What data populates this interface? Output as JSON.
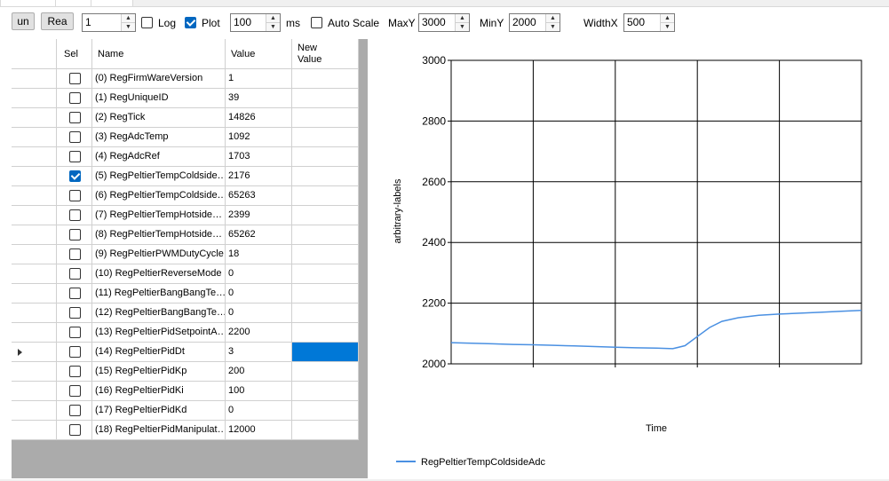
{
  "toolbar": {
    "run_label": "un",
    "read_label": "Rea",
    "interval_value": "1",
    "log_label": "Log",
    "log_checked": false,
    "plot_label": "Plot",
    "plot_checked": true,
    "period_value": "100",
    "period_unit": "ms",
    "autoscale_label": "Auto Scale",
    "autoscale_checked": false,
    "maxy_label": "MaxY",
    "maxy_value": "3000",
    "miny_label": "MinY",
    "miny_value": "2000",
    "widthx_label": "WidthX",
    "widthx_value": "500"
  },
  "table": {
    "headers": {
      "sel": "Sel",
      "name": "Name",
      "value": "Value",
      "new_value_line1": "New",
      "new_value_line2": "Value"
    },
    "current_row": 14,
    "rows": [
      {
        "name": "(0) RegFirmWareVersion",
        "value": "1",
        "sel": false
      },
      {
        "name": "(1) RegUniqueID",
        "value": "39",
        "sel": false
      },
      {
        "name": "(2) RegTick",
        "value": "14826",
        "sel": false
      },
      {
        "name": "(3) RegAdcTemp",
        "value": "1092",
        "sel": false
      },
      {
        "name": "(4) RegAdcRef",
        "value": "1703",
        "sel": false
      },
      {
        "name": "(5) RegPeltierTempColdside…",
        "value": "2176",
        "sel": true
      },
      {
        "name": "(6) RegPeltierTempColdside…",
        "value": "65263",
        "sel": false
      },
      {
        "name": "(7) RegPeltierTempHotside…",
        "value": "2399",
        "sel": false
      },
      {
        "name": "(8) RegPeltierTempHotside…",
        "value": "65262",
        "sel": false
      },
      {
        "name": "(9) RegPeltierPWMDutyCycle",
        "value": "18",
        "sel": false
      },
      {
        "name": "(10) RegPeltierReverseMode",
        "value": "0",
        "sel": false
      },
      {
        "name": "(11) RegPeltierBangBangTe…",
        "value": "0",
        "sel": false
      },
      {
        "name": "(12) RegPeltierBangBangTe…",
        "value": "0",
        "sel": false
      },
      {
        "name": "(13) RegPeltierPidSetpointA…",
        "value": "2200",
        "sel": false
      },
      {
        "name": "(14) RegPeltierPidDt",
        "value": "3",
        "sel": false
      },
      {
        "name": "(15) RegPeltierPidKp",
        "value": "200",
        "sel": false
      },
      {
        "name": "(16) RegPeltierPidKi",
        "value": "100",
        "sel": false
      },
      {
        "name": "(17) RegPeltierPidKd",
        "value": "0",
        "sel": false
      },
      {
        "name": "(18) RegPeltierPidManipulat…",
        "value": "12000",
        "sel": false
      }
    ]
  },
  "chart_data": {
    "type": "line",
    "xlabel": "Time",
    "ylabel": "arbitrary-labels",
    "ylim": [
      2000,
      3000
    ],
    "xlim": [
      0,
      500
    ],
    "yticks": [
      "2000",
      "2200",
      "2400",
      "2600",
      "2800",
      "3000"
    ],
    "grid": true,
    "legend_placement": "bottom-left",
    "series": [
      {
        "name": "RegPeltierTempColdsideAdc",
        "color": "#4a90e2",
        "x": [
          0,
          25,
          50,
          75,
          100,
          125,
          150,
          175,
          200,
          225,
          250,
          270,
          285,
          300,
          315,
          330,
          350,
          375,
          400,
          425,
          450,
          475,
          500
        ],
        "y": [
          2070,
          2068,
          2066,
          2064,
          2063,
          2061,
          2059,
          2057,
          2055,
          2053,
          2052,
          2050,
          2060,
          2090,
          2120,
          2140,
          2152,
          2160,
          2164,
          2167,
          2170,
          2173,
          2176
        ]
      }
    ]
  }
}
